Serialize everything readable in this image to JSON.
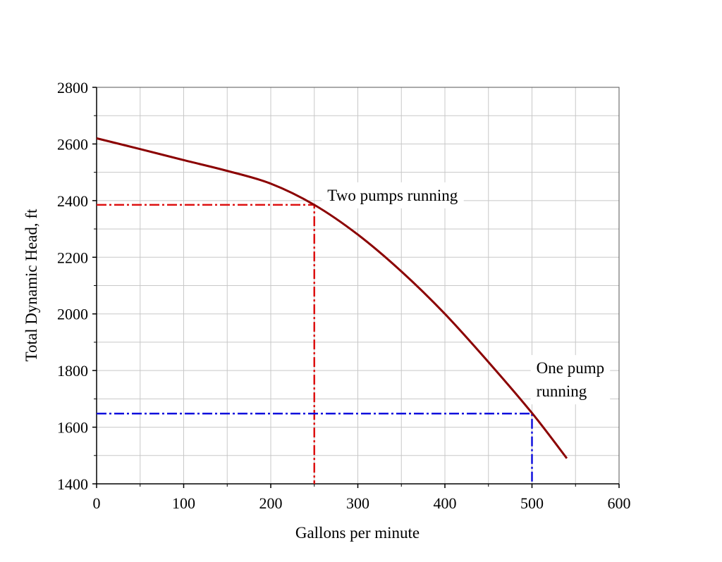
{
  "chart_data": {
    "type": "line",
    "title": "",
    "xlabel": "Gallons per minute",
    "ylabel": "Total Dynamic Head, ft",
    "xlim": [
      0,
      600
    ],
    "ylim": [
      1400,
      2800
    ],
    "x_ticks": [
      0,
      100,
      200,
      300,
      400,
      500,
      600
    ],
    "y_ticks": [
      1400,
      1600,
      1800,
      2000,
      2200,
      2400,
      2600,
      2800
    ],
    "x_tick_labels": [
      "0",
      "100",
      "200",
      "300",
      "400",
      "500",
      "600"
    ],
    "y_tick_labels": [
      "1400",
      "1600",
      "1800",
      "2000",
      "2200",
      "2400",
      "2600",
      "2800"
    ],
    "grid": true,
    "series": [
      {
        "color": "#8b0000",
        "x": [
          0,
          50,
          100,
          150,
          200,
          250,
          300,
          350,
          400,
          450,
          500,
          540
        ],
        "y": [
          2620,
          2582,
          2543,
          2505,
          2460,
          2385,
          2280,
          2150,
          2000,
          1830,
          1650,
          1490
        ]
      }
    ],
    "reference_lines": [
      {
        "color": "#dd1111",
        "points": [
          [
            0,
            2385
          ],
          [
            250,
            2385
          ],
          [
            250,
            1400
          ]
        ]
      },
      {
        "color": "#1111dd",
        "points": [
          [
            0,
            1648
          ],
          [
            500,
            1648
          ],
          [
            500,
            1400
          ]
        ]
      }
    ],
    "annotations": [
      {
        "lines": [
          "Two pumps running"
        ],
        "x": 265,
        "y": 2400
      },
      {
        "lines": [
          "One pump",
          "running"
        ],
        "x": 505,
        "y": 1790
      }
    ]
  }
}
